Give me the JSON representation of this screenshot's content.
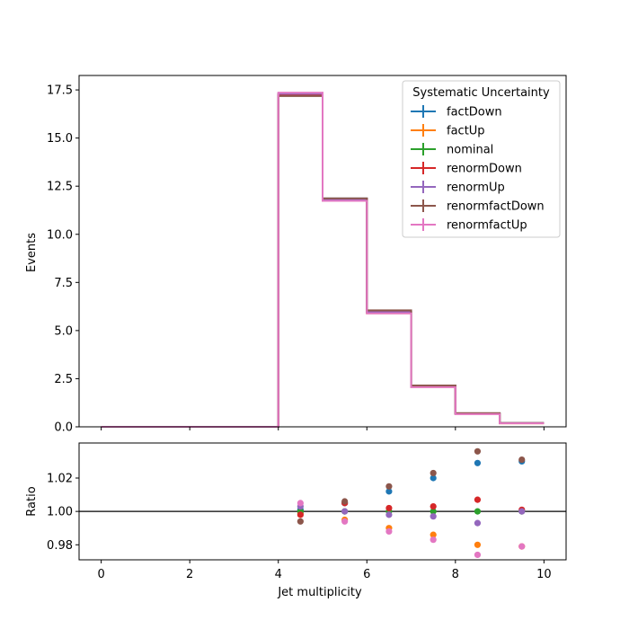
{
  "chart_data": [
    {
      "type": "line",
      "panel": "main",
      "step": true,
      "ylabel": "Events",
      "xlim": [
        -0.5,
        10.5
      ],
      "ylim": [
        0,
        18.25
      ],
      "yticks": [
        0.0,
        2.5,
        5.0,
        7.5,
        10.0,
        12.5,
        15.0,
        17.5
      ],
      "ytick_labels": [
        "0.0",
        "2.5",
        "5.0",
        "7.5",
        "10.0",
        "12.5",
        "15.0",
        "17.5"
      ],
      "bin_edges": [
        0,
        1,
        2,
        3,
        4,
        5,
        6,
        7,
        8,
        9,
        10
      ],
      "legend": {
        "title": "Systematic Uncertainty",
        "placement": "top-right"
      },
      "series": [
        {
          "name": "factDown",
          "color": "#1f77b4",
          "values": [
            0,
            0,
            0,
            0,
            17.27,
            11.86,
            6.03,
            2.14,
            0.7,
            0.19
          ]
        },
        {
          "name": "factUp",
          "color": "#ff7f0e",
          "values": [
            0,
            0,
            0,
            0,
            17.29,
            11.79,
            5.9,
            2.07,
            0.67,
            0.18
          ]
        },
        {
          "name": "nominal",
          "color": "#2ca02c",
          "values": [
            0,
            0,
            0,
            0,
            17.28,
            11.8,
            5.96,
            2.1,
            0.68,
            0.19
          ]
        },
        {
          "name": "renormDown",
          "color": "#d62728",
          "values": [
            0,
            0,
            0,
            0,
            17.24,
            11.85,
            5.97,
            2.11,
            0.69,
            0.19
          ]
        },
        {
          "name": "renormUp",
          "color": "#9467bd",
          "values": [
            0,
            0,
            0,
            0,
            17.3,
            11.8,
            5.95,
            2.09,
            0.68,
            0.19
          ]
        },
        {
          "name": "renormfactDown",
          "color": "#8c564b",
          "values": [
            0,
            0,
            0,
            0,
            17.18,
            11.87,
            6.05,
            2.15,
            0.71,
            0.19
          ]
        },
        {
          "name": "renormfactUp",
          "color": "#e377c2",
          "values": [
            0,
            0,
            0,
            0,
            17.36,
            11.74,
            5.89,
            2.06,
            0.66,
            0.18
          ]
        }
      ]
    },
    {
      "type": "scatter",
      "panel": "ratio",
      "ylabel": "Ratio",
      "xlabel": "Jet multiplicity",
      "xlim": [
        -0.5,
        10.5
      ],
      "ylim": [
        0.971,
        1.041
      ],
      "yticks": [
        0.98,
        1.0,
        1.02
      ],
      "ytick_labels": [
        "0.98",
        "1.00",
        "1.02"
      ],
      "xticks": [
        0,
        2,
        4,
        6,
        8,
        10
      ],
      "xtick_labels": [
        "0",
        "2",
        "4",
        "6",
        "8",
        "10"
      ],
      "reference_line": 1.0,
      "x": [
        4.5,
        5.5,
        6.5,
        7.5,
        8.5,
        9.5
      ],
      "series": [
        {
          "name": "factDown",
          "color": "#1f77b4",
          "values": [
            1.001,
            1.005,
            1.012,
            1.02,
            1.029,
            1.03
          ]
        },
        {
          "name": "factUp",
          "color": "#ff7f0e",
          "values": [
            0.999,
            0.995,
            0.99,
            0.986,
            0.98,
            0.979
          ]
        },
        {
          "name": "nominal",
          "color": "#2ca02c",
          "values": [
            1.0,
            1.0,
            1.0,
            1.0,
            1.0,
            1.0
          ]
        },
        {
          "name": "renormDown",
          "color": "#d62728",
          "values": [
            0.998,
            1.005,
            1.002,
            1.003,
            1.007,
            1.001
          ]
        },
        {
          "name": "renormUp",
          "color": "#9467bd",
          "values": [
            1.003,
            1.0,
            0.998,
            0.997,
            0.993,
            1.0
          ]
        },
        {
          "name": "renormfactDown",
          "color": "#8c564b",
          "values": [
            0.994,
            1.006,
            1.015,
            1.023,
            1.036,
            1.031
          ]
        },
        {
          "name": "renormfactUp",
          "color": "#e377c2",
          "values": [
            1.005,
            0.994,
            0.988,
            0.983,
            0.974,
            0.979
          ]
        }
      ]
    }
  ]
}
